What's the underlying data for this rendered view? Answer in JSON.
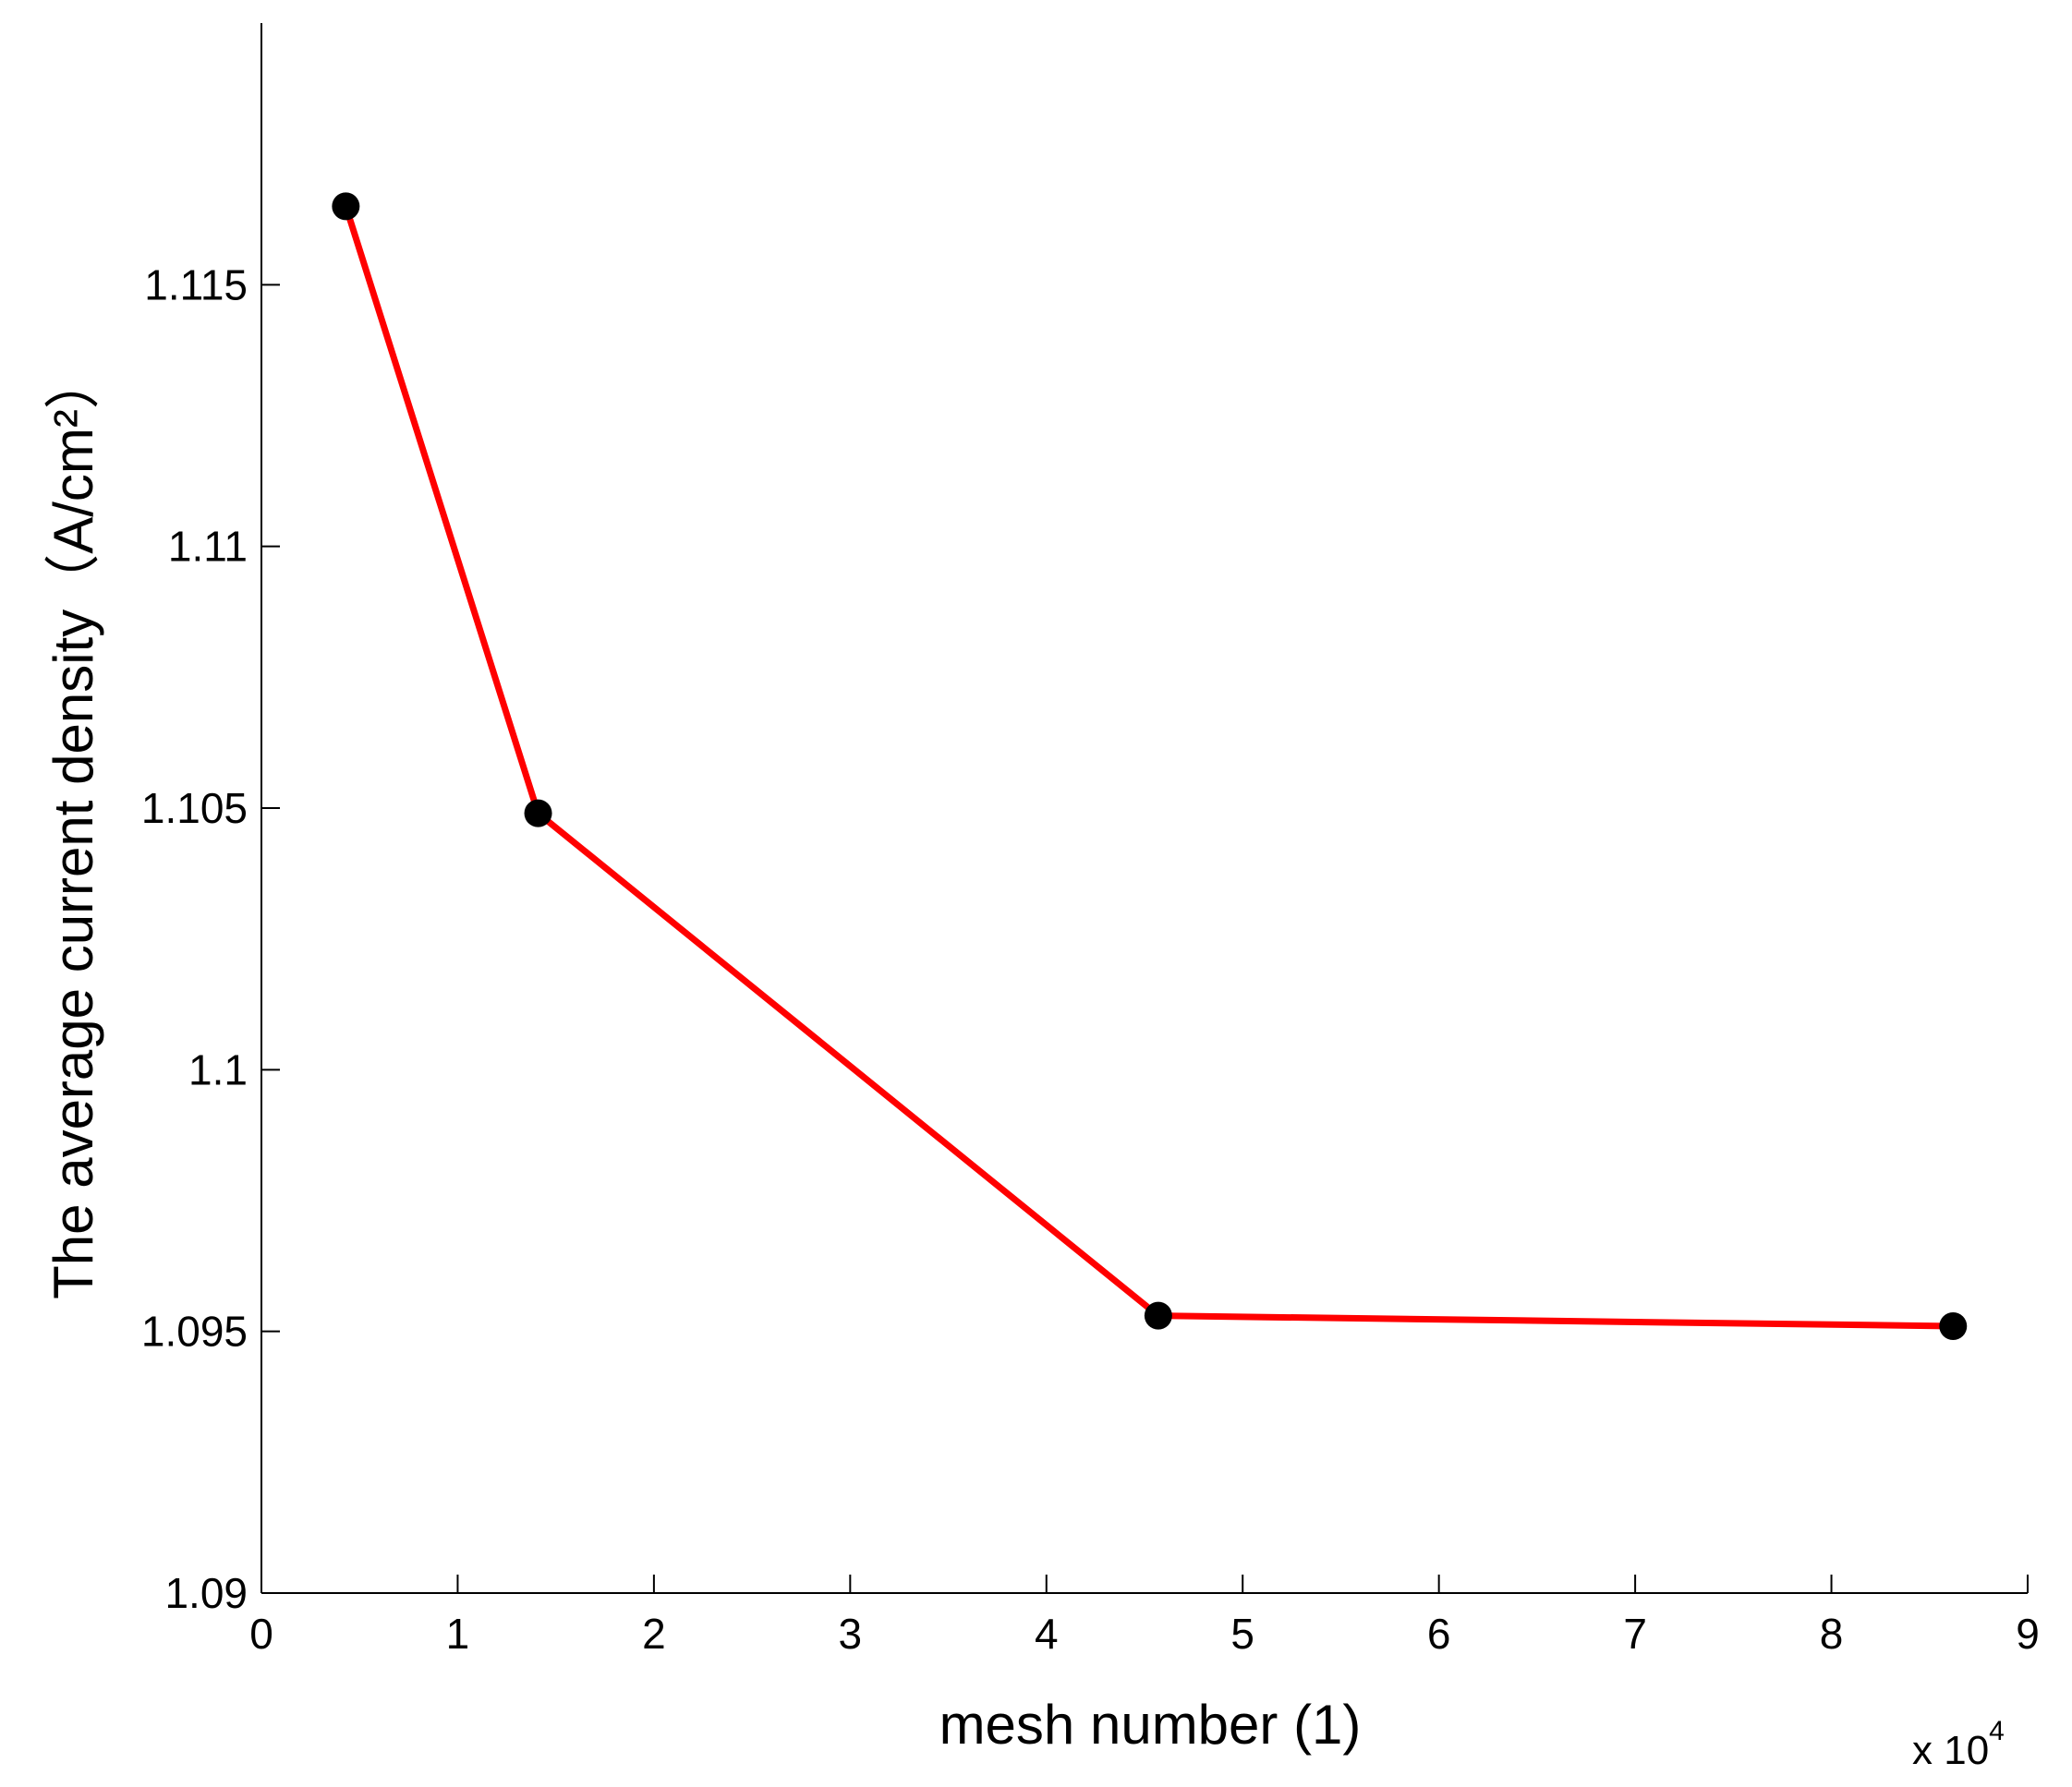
{
  "chart_data": {
    "type": "line",
    "xlabel": "mesh number (1)",
    "ylabel": "The average current density（A/cm²）",
    "x_multiplier": {
      "base": "x 10",
      "exponent": "4"
    },
    "xlim": [
      0,
      9
    ],
    "ylim": [
      1.09,
      1.12
    ],
    "x_ticks": [
      0,
      1,
      2,
      3,
      4,
      5,
      6,
      7,
      8,
      9
    ],
    "x_tick_labels": [
      "0",
      "1",
      "2",
      "3",
      "4",
      "5",
      "6",
      "7",
      "8",
      "9"
    ],
    "y_ticks": [
      1.09,
      1.095,
      1.1,
      1.105,
      1.11,
      1.115
    ],
    "y_tick_labels": [
      "1.09",
      "1.095",
      "1.1",
      "1.105",
      "1.11",
      "1.115"
    ],
    "grid": false,
    "series": [
      {
        "x": [
          0.43,
          1.41,
          4.57,
          8.62
        ],
        "y": [
          1.1165,
          1.1049,
          1.0953,
          1.0951
        ],
        "line_color": "#ff0000",
        "marker_color": "#000000"
      }
    ]
  }
}
